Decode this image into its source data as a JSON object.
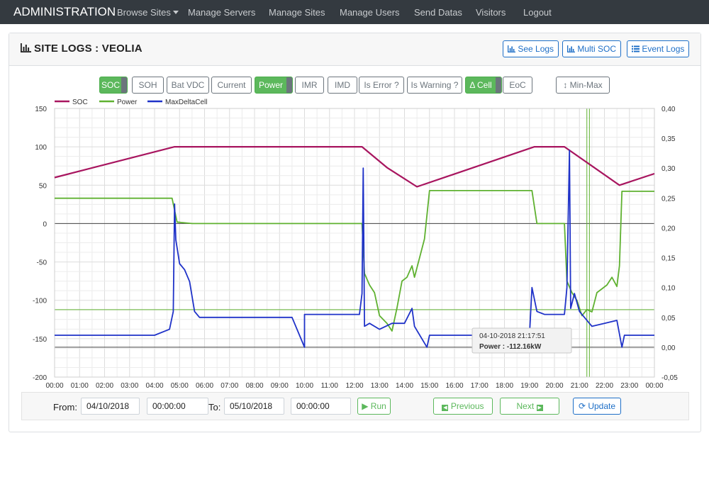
{
  "navbar": {
    "brand": "ADMINISTRATION",
    "items": [
      "Browse Sites",
      "Manage Servers",
      "Manage Sites",
      "Manage Users",
      "Send Datas",
      "Visitors",
      "Logout"
    ]
  },
  "header": {
    "title": "SITE LOGS : VEOLIA",
    "buttons": [
      "See Logs",
      "Multi SOC",
      "Event Logs"
    ]
  },
  "toggles": [
    {
      "label": "SOC",
      "active": true
    },
    {
      "label": "SOH",
      "active": false
    },
    {
      "label": "Bat VDC",
      "active": false
    },
    {
      "label": "Current",
      "active": false
    },
    {
      "label": "Power",
      "active": true
    },
    {
      "label": "IMR",
      "active": false
    },
    {
      "label": "IMD",
      "active": false
    },
    {
      "label": "Is Error ?",
      "active": false
    },
    {
      "label": "Is Warning ?",
      "active": false
    },
    {
      "label": "Δ Cell",
      "active": true
    },
    {
      "label": "EoC",
      "active": false
    }
  ],
  "minmax_label": "Min-Max",
  "colors": {
    "soc": "#a8155f",
    "power": "#5fb130",
    "maxdeltacell": "#1f32c8",
    "accent": "#1e6fc7",
    "success": "#5cb85c"
  },
  "tooltip": {
    "date": "04-10-2018 21:17:51",
    "value": "Power : -112.16kW"
  },
  "footer": {
    "from_label": "From:",
    "from_date": "04/10/2018",
    "from_time": "00:00:00",
    "to_label": "To:",
    "to_date": "05/10/2018",
    "to_time": "00:00:00",
    "run": "Run",
    "previous": "Previous",
    "next": "Next",
    "update": "Update"
  },
  "chart_data": {
    "type": "line",
    "x_ticks": [
      "00:00",
      "01:00",
      "02:00",
      "03:00",
      "04:00",
      "05:00",
      "06:00",
      "07:00",
      "08:00",
      "09:00",
      "10:00",
      "11:00",
      "12:00",
      "13:00",
      "14:00",
      "15:00",
      "16:00",
      "17:00",
      "18:00",
      "19:00",
      "20:00",
      "21:00",
      "22:00",
      "23:00",
      "00:00"
    ],
    "y_left_ticks": [
      "150",
      "100",
      "50",
      "0",
      "-50",
      "-100",
      "-150",
      "-200"
    ],
    "y_left_range": [
      -200,
      150
    ],
    "y_right_ticks": [
      "0,40",
      "0,35",
      "0,30",
      "0,25",
      "0,20",
      "0,15",
      "0,10",
      "0,05",
      "0,00",
      "-0,05"
    ],
    "y_right_range": [
      -0.05,
      0.4
    ],
    "x_range_hours": [
      0,
      24
    ],
    "legend_position": "top-left",
    "grid": true,
    "series": [
      {
        "name": "SOC",
        "axis": "left",
        "color": "#a8155f",
        "points": [
          [
            0,
            60
          ],
          [
            4.8,
            100
          ],
          [
            12.3,
            100
          ],
          [
            13.3,
            73
          ],
          [
            14.5,
            48
          ],
          [
            19.2,
            100
          ],
          [
            20.4,
            100
          ],
          [
            21.5,
            75
          ],
          [
            22.6,
            50
          ],
          [
            24,
            65
          ]
        ]
      },
      {
        "name": "Power",
        "axis": "left",
        "color": "#5fb130",
        "points": [
          [
            0,
            33
          ],
          [
            4.7,
            33
          ],
          [
            4.9,
            2
          ],
          [
            5.5,
            0
          ],
          [
            12.3,
            0
          ],
          [
            12.4,
            -65
          ],
          [
            12.6,
            -80
          ],
          [
            12.8,
            -90
          ],
          [
            13.0,
            -120
          ],
          [
            13.3,
            -130
          ],
          [
            13.5,
            -140
          ],
          [
            13.7,
            -110
          ],
          [
            13.9,
            -75
          ],
          [
            14.1,
            -70
          ],
          [
            14.3,
            -55
          ],
          [
            14.4,
            -70
          ],
          [
            14.8,
            -20
          ],
          [
            15.0,
            43
          ],
          [
            19.1,
            43
          ],
          [
            19.3,
            0
          ],
          [
            20.4,
            0
          ],
          [
            20.5,
            -75
          ],
          [
            20.7,
            -90
          ],
          [
            20.9,
            -100
          ],
          [
            21.1,
            -120
          ],
          [
            21.3,
            -112
          ],
          [
            21.5,
            -115
          ],
          [
            21.7,
            -90
          ],
          [
            21.9,
            -85
          ],
          [
            22.1,
            -80
          ],
          [
            22.3,
            -70
          ],
          [
            22.5,
            -82
          ],
          [
            22.6,
            -55
          ],
          [
            22.7,
            42
          ],
          [
            24,
            42
          ]
        ]
      },
      {
        "name": "MaxDeltaCell",
        "axis": "right",
        "color": "#1f32c8",
        "points": [
          [
            0,
            0.02
          ],
          [
            2,
            0.02
          ],
          [
            4,
            0.02
          ],
          [
            4.6,
            0.03
          ],
          [
            4.75,
            0.06
          ],
          [
            4.8,
            0.24
          ],
          [
            4.85,
            0.18
          ],
          [
            5.0,
            0.14
          ],
          [
            5.2,
            0.13
          ],
          [
            5.4,
            0.11
          ],
          [
            5.6,
            0.06
          ],
          [
            5.8,
            0.05
          ],
          [
            9,
            0.05
          ],
          [
            9.5,
            0.05
          ],
          [
            10.0,
            0.0
          ],
          [
            10.0,
            0.055
          ],
          [
            12.2,
            0.055
          ],
          [
            12.3,
            0.09
          ],
          [
            12.35,
            0.3
          ],
          [
            12.4,
            0.035
          ],
          [
            12.6,
            0.04
          ],
          [
            13.0,
            0.03
          ],
          [
            13.5,
            0.04
          ],
          [
            14.0,
            0.04
          ],
          [
            14.3,
            0.065
          ],
          [
            14.4,
            0.035
          ],
          [
            14.9,
            0.0
          ],
          [
            15.0,
            0.02
          ],
          [
            17,
            0.02
          ],
          [
            18.5,
            0.025
          ],
          [
            19.0,
            0.02
          ],
          [
            19.1,
            0.1
          ],
          [
            19.3,
            0.06
          ],
          [
            19.6,
            0.055
          ],
          [
            20.4,
            0.055
          ],
          [
            20.5,
            0.1
          ],
          [
            20.6,
            0.33
          ],
          [
            20.65,
            0.065
          ],
          [
            20.8,
            0.09
          ],
          [
            21.0,
            0.06
          ],
          [
            21.5,
            0.035
          ],
          [
            22.0,
            0.04
          ],
          [
            22.5,
            0.045
          ],
          [
            22.7,
            0.0
          ],
          [
            22.8,
            0.02
          ],
          [
            24,
            0.02
          ]
        ]
      }
    ]
  }
}
